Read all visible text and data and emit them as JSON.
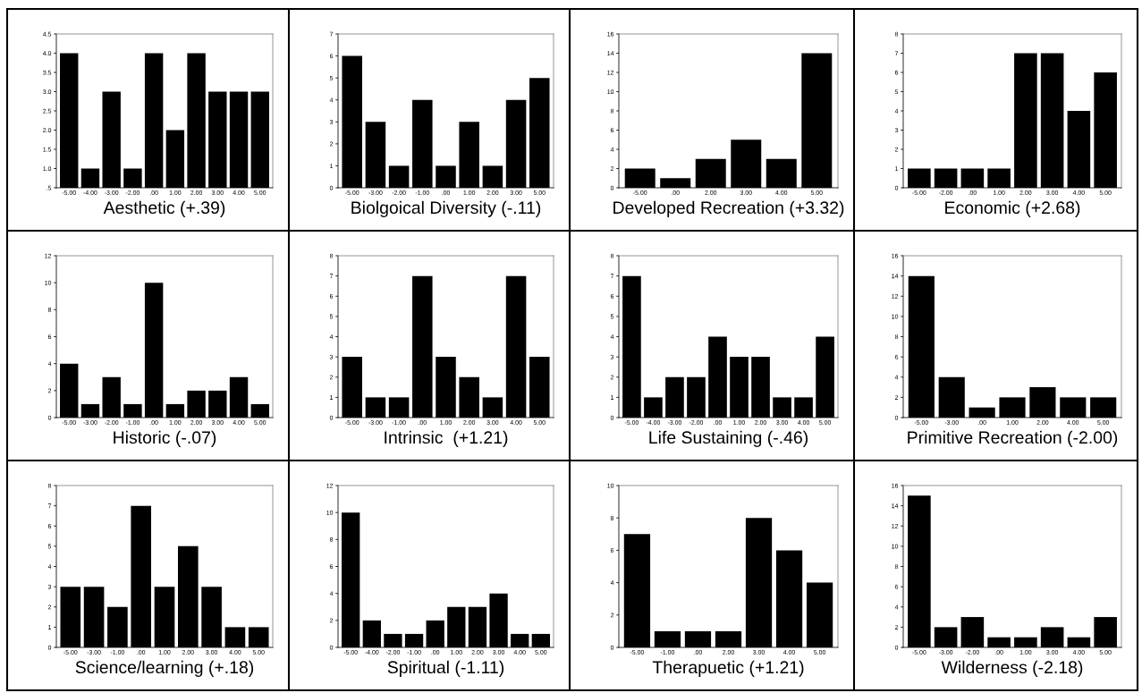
{
  "chart_data": [
    {
      "type": "bar",
      "xlabel": "Aesthetic (+.39)",
      "categories": [
        "-5.00",
        "-4.00",
        "-3.00",
        "-2.00",
        ".00",
        "1.00",
        "2.00",
        "3.00",
        "4.00",
        "5.00"
      ],
      "values": [
        4,
        1,
        3,
        1,
        4,
        2,
        4,
        3,
        3,
        3
      ],
      "color": "#000000",
      "ylim": [
        0.5,
        4.5
      ],
      "yticks": [
        {
          "value": 0.5,
          "label": ".5"
        },
        {
          "value": 1,
          "label": "1.0"
        },
        {
          "value": 1.5,
          "label": "1.5"
        },
        {
          "value": 2,
          "label": "2.0"
        },
        {
          "value": 2.5,
          "label": "2.5"
        },
        {
          "value": 3,
          "label": "3.0"
        },
        {
          "value": 3.5,
          "label": "3.5"
        },
        {
          "value": 4,
          "label": "4.0"
        },
        {
          "value": 4.5,
          "label": "4.5"
        }
      ]
    },
    {
      "type": "bar",
      "xlabel": "Biolgoical Diversity (-.11)",
      "categories": [
        "-5.00",
        "-3.00",
        "-2.00",
        "-1.00",
        ".00",
        "1.00",
        "2.00",
        "3.00",
        "5.00"
      ],
      "values": [
        6,
        3,
        1,
        4,
        1,
        3,
        1,
        4,
        5
      ],
      "color": "#000000",
      "ylim": [
        0,
        7
      ],
      "yticks": [
        0,
        1,
        2,
        3,
        4,
        5,
        6,
        7
      ]
    },
    {
      "type": "bar",
      "xlabel": "Developed Recreation (+3.32)",
      "categories": [
        "-5.00",
        ".00",
        "2.00",
        "3.00",
        "4.00",
        "5.00"
      ],
      "values": [
        2,
        1,
        3,
        5,
        3,
        14
      ],
      "color": "#000000",
      "ylim": [
        0,
        16
      ],
      "yticks": [
        0,
        2,
        4,
        6,
        8,
        10,
        12,
        14,
        16
      ]
    },
    {
      "type": "bar",
      "xlabel": "Economic (+2.68)",
      "categories": [
        "-5.00",
        "-2.00",
        ".00",
        "1.00",
        "2.00",
        "3.00",
        "4.00",
        "5.00"
      ],
      "values": [
        1,
        1,
        1,
        1,
        7,
        7,
        4,
        6
      ],
      "color": "#000000",
      "ylim": [
        0,
        8
      ],
      "yticks": [
        0,
        1,
        2,
        3,
        4,
        5,
        6,
        7,
        8
      ]
    },
    {
      "type": "bar",
      "xlabel": "Historic (-.07)",
      "categories": [
        "-5.00",
        "-3.00",
        "-2.00",
        "-1.00",
        ".00",
        "1.00",
        "2.00",
        "3.00",
        "4.00",
        "5.00"
      ],
      "values": [
        4,
        1,
        3,
        1,
        10,
        1,
        2,
        2,
        3,
        1
      ],
      "color": "#000000",
      "ylim": [
        0,
        12
      ],
      "yticks": [
        0,
        2,
        4,
        6,
        8,
        10,
        12
      ]
    },
    {
      "type": "bar",
      "xlabel": "Intrinsic  (+1.21)",
      "categories": [
        "-5.00",
        "-3.00",
        "-1.00",
        ".00",
        "1.00",
        "2.00",
        "3.00",
        "4.00",
        "5.00"
      ],
      "values": [
        3,
        1,
        1,
        7,
        3,
        2,
        1,
        7,
        3
      ],
      "color": "#000000",
      "ylim": [
        0,
        8
      ],
      "yticks": [
        0,
        1,
        2,
        3,
        4,
        5,
        6,
        7,
        8
      ]
    },
    {
      "type": "bar",
      "xlabel": "Life Sustaining (-.46)",
      "categories": [
        "-5.00",
        "-4.00",
        "-3.00",
        "-2.00",
        ".00",
        "1.00",
        "2.00",
        "3.00",
        "4.00",
        "5.00"
      ],
      "values": [
        7,
        1,
        2,
        2,
        4,
        3,
        3,
        1,
        1,
        4
      ],
      "color": "#000000",
      "ylim": [
        0,
        8
      ],
      "yticks": [
        0,
        1,
        2,
        3,
        4,
        5,
        6,
        7,
        8
      ]
    },
    {
      "type": "bar",
      "xlabel": "Primitive Recreation (-2.00)",
      "categories": [
        "-5.00",
        "-3.00",
        ".00",
        "1.00",
        "2.00",
        "4.00",
        "5.00"
      ],
      "values": [
        14,
        4,
        1,
        2,
        3,
        2,
        2
      ],
      "color": "#000000",
      "ylim": [
        0,
        16
      ],
      "yticks": [
        0,
        2,
        4,
        6,
        8,
        10,
        12,
        14,
        16
      ]
    },
    {
      "type": "bar",
      "xlabel": "Science/learning (+.18)",
      "categories": [
        "-5.00",
        "-3.00",
        "-1.00",
        ".00",
        "1.00",
        "2.00",
        "3.00",
        "4.00",
        "5.00"
      ],
      "values": [
        3,
        3,
        2,
        7,
        3,
        5,
        3,
        1,
        1
      ],
      "color": "#000000",
      "ylim": [
        0,
        8
      ],
      "yticks": [
        0,
        1,
        2,
        3,
        4,
        5,
        6,
        7,
        8
      ]
    },
    {
      "type": "bar",
      "xlabel": "Spiritual (-1.11)",
      "categories": [
        "-5.00",
        "-4.00",
        "-2.00",
        "-1.00",
        ".00",
        "1.00",
        "2.00",
        "3.00",
        "4.00",
        "5.00"
      ],
      "values": [
        10,
        2,
        1,
        1,
        2,
        3,
        3,
        4,
        1,
        1
      ],
      "color": "#000000",
      "ylim": [
        0,
        12
      ],
      "yticks": [
        0,
        2,
        4,
        6,
        8,
        10,
        12
      ]
    },
    {
      "type": "bar",
      "xlabel": "Therapuetic (+1.21)",
      "categories": [
        "-5.00",
        "-1.00",
        ".00",
        "2.00",
        "3.00",
        "4.00",
        "5.00"
      ],
      "values": [
        7,
        1,
        1,
        1,
        8,
        6,
        4
      ],
      "color": "#000000",
      "ylim": [
        0,
        10
      ],
      "yticks": [
        0,
        2,
        4,
        6,
        8,
        10
      ]
    },
    {
      "type": "bar",
      "xlabel": "Wilderness (-2.18)",
      "categories": [
        "-5.00",
        "-3.00",
        "-2.00",
        ".00",
        "1.00",
        "3.00",
        "4.00",
        "5.00"
      ],
      "values": [
        15,
        2,
        3,
        1,
        1,
        2,
        1,
        3
      ],
      "color": "#000000",
      "ylim": [
        0,
        16
      ],
      "yticks": [
        0,
        2,
        4,
        6,
        8,
        10,
        12,
        14,
        16
      ]
    }
  ]
}
